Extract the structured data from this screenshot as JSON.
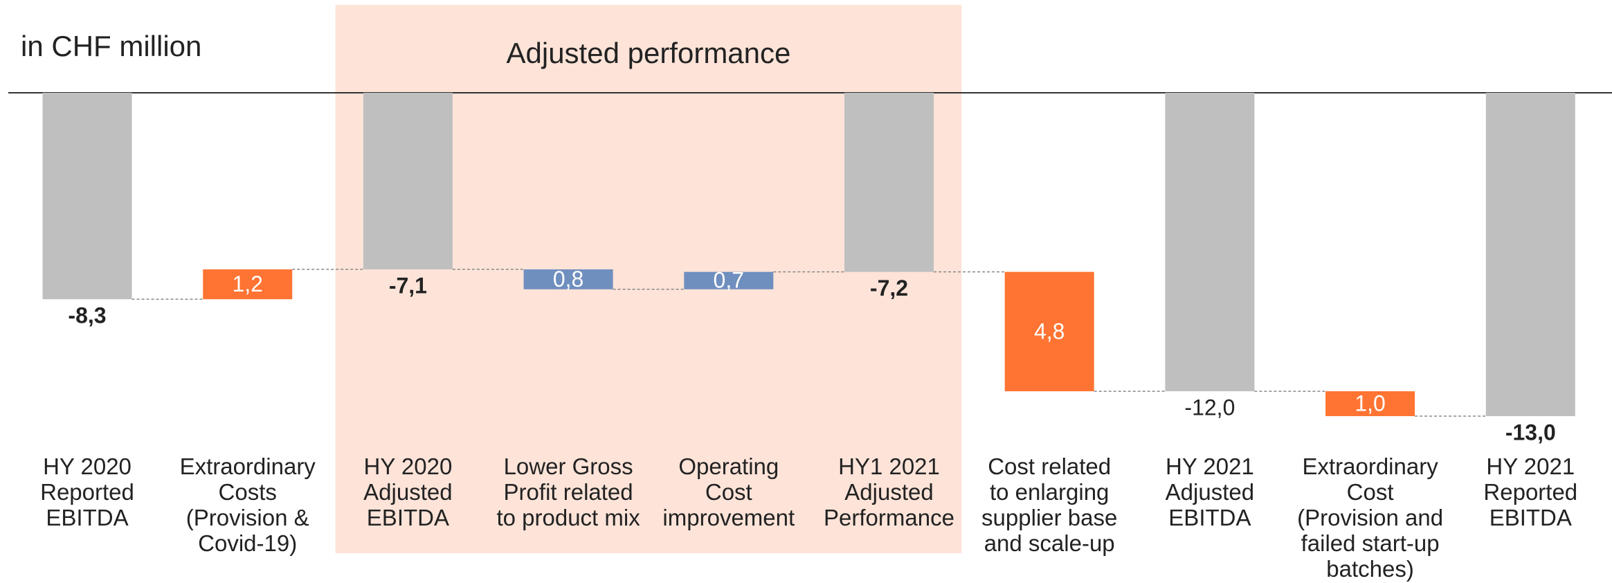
{
  "chart_data": {
    "type": "waterfall",
    "unit_label": "in CHF million",
    "annotation": "Adjusted performance",
    "categories": [
      [
        "HY 2020",
        "Reported",
        "EBITDA"
      ],
      [
        "Extraordinary",
        "Costs",
        "(Provision &",
        "Covid-19)"
      ],
      [
        "HY 2020",
        "Adjusted",
        "EBITDA"
      ],
      [
        "Lower Gross",
        "Profit related",
        "to product mix"
      ],
      [
        "Operating",
        "Cost",
        "improvement"
      ],
      [
        "HY1 2021",
        "Adjusted",
        "Performance"
      ],
      [
        "Cost related",
        "to enlarging",
        "supplier base",
        "and scale-up"
      ],
      [
        "HY 2021",
        "Adjusted",
        "EBITDA"
      ],
      [
        "Extraordinary",
        "Cost",
        "(Provision and",
        "failed start-up",
        "batches)"
      ],
      [
        "HY 2021",
        "Reported",
        "EBITDA"
      ]
    ],
    "values": [
      -8.3,
      1.2,
      -7.1,
      -0.8,
      0.7,
      -7.2,
      -4.8,
      -12.0,
      -1.0,
      -13.0
    ],
    "value_labels": [
      "-8,3",
      "1,2",
      "-7,1",
      "0,8",
      "0,7",
      "-7,2",
      "4,8",
      "-12,0",
      "1,0",
      "-13,0"
    ],
    "measure": [
      "total",
      "relative",
      "total",
      "relative",
      "relative",
      "total",
      "relative",
      "total",
      "relative",
      "total"
    ],
    "colors": [
      "#bfbfbf",
      "#ff7433",
      "#bfbfbf",
      "#6f8fbf",
      "#6f8fbf",
      "#bfbfbf",
      "#ff7433",
      "#bfbfbf",
      "#ff7433",
      "#bfbfbf"
    ],
    "bold_labels": [
      true,
      false,
      true,
      false,
      false,
      true,
      false,
      false,
      false,
      true
    ],
    "highlight_range": [
      2,
      5
    ],
    "ylim": [
      -13,
      0
    ]
  }
}
